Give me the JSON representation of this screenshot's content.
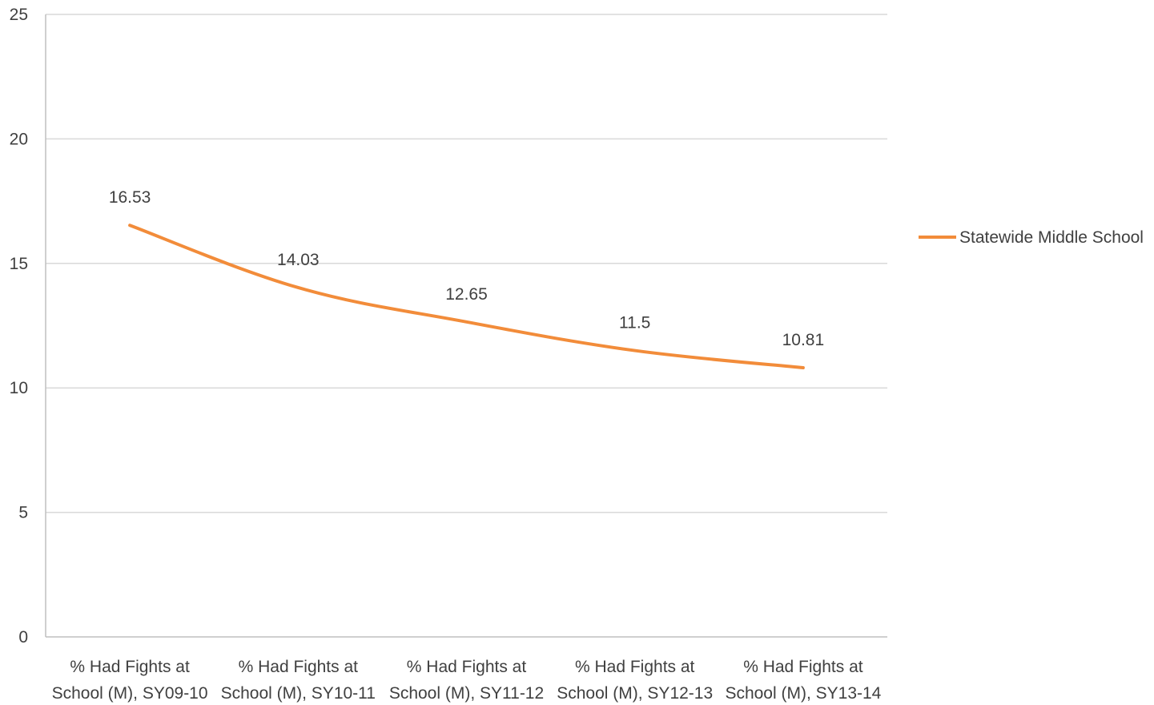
{
  "chart_data": {
    "type": "line",
    "categories": [
      [
        "% Had Fights at",
        "School (M), SY09-10"
      ],
      [
        "% Had Fights at",
        "School (M), SY10-11"
      ],
      [
        "% Had Fights at",
        "School (M), SY11-12"
      ],
      [
        "% Had Fights at",
        "School (M), SY12-13"
      ],
      [
        "% Had Fights at",
        "School (M), SY13-14"
      ]
    ],
    "series": [
      {
        "name": "Statewide Middle School",
        "values": [
          16.53,
          14.03,
          12.65,
          11.5,
          10.81
        ],
        "labels": [
          "16.53",
          "14.03",
          "12.65",
          "11.5",
          "10.81"
        ],
        "color": "#F28C3A"
      }
    ],
    "ylim": [
      0,
      25
    ],
    "yticks": [
      0,
      5,
      10,
      15,
      20,
      25
    ],
    "grid": true,
    "gridColor": "#D9D9D9",
    "axisColor": "#BFBFBF",
    "legend": "right",
    "xlabel": "",
    "ylabel": "",
    "title": ""
  }
}
